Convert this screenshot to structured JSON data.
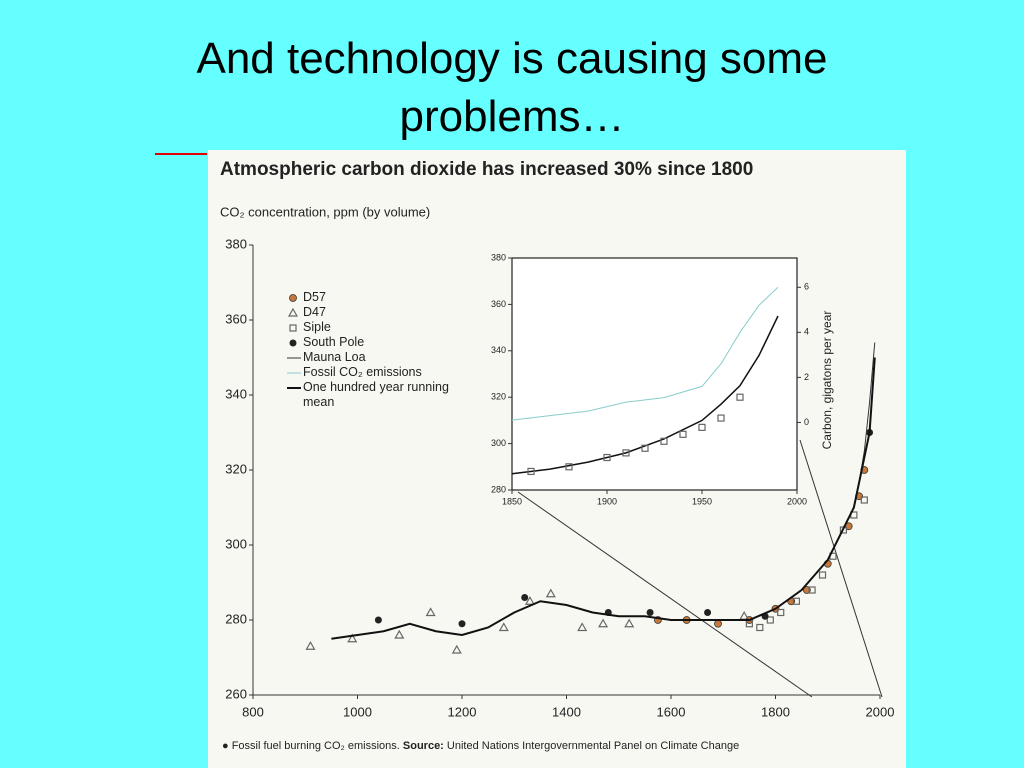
{
  "title": "And technology is causing some problems…",
  "chart_data": [
    {
      "type": "scatter",
      "title": "Atmospheric carbon dioxide has increased 30% since 1800",
      "subtitle": "CO₂ concentration, ppm (by volume)",
      "note": "Fossil fuel burning CO₂ emissions.",
      "source_label": "Source:",
      "source": "United Nations Intergovernmental Panel on Climate Change",
      "xlim": [
        800,
        2000
      ],
      "xticks": [
        800,
        1000,
        1200,
        1400,
        1600,
        1800,
        2000
      ],
      "ylim": [
        260,
        380
      ],
      "yticks": [
        260,
        280,
        300,
        320,
        340,
        360,
        380
      ],
      "grid": false,
      "series": [
        {
          "name": "D57",
          "type": "scatter",
          "marker": "circle",
          "color": "#c8783a",
          "x": [
            1575,
            1630,
            1690,
            1750,
            1800,
            1830,
            1860,
            1900,
            1940,
            1960,
            1970
          ],
          "values": [
            280,
            280,
            279,
            280,
            283,
            285,
            288,
            295,
            305,
            313,
            320
          ]
        },
        {
          "name": "D47",
          "type": "scatter",
          "marker": "triangle",
          "color": "#666666",
          "x": [
            910,
            990,
            1080,
            1140,
            1190,
            1280,
            1330,
            1370,
            1430,
            1470,
            1520,
            1740
          ],
          "values": [
            273,
            275,
            276,
            282,
            272,
            278,
            285,
            287,
            278,
            279,
            279,
            281
          ]
        },
        {
          "name": "Siple",
          "type": "scatter",
          "marker": "square",
          "color": "#666666",
          "x": [
            1750,
            1770,
            1790,
            1810,
            1840,
            1870,
            1890,
            1910,
            1930,
            1950,
            1970
          ],
          "values": [
            279,
            278,
            280,
            282,
            285,
            288,
            292,
            297,
            304,
            308,
            312
          ]
        },
        {
          "name": "South Pole",
          "type": "scatter",
          "marker": "dot",
          "color": "#222222",
          "x": [
            1040,
            1200,
            1320,
            1480,
            1560,
            1670,
            1780,
            1980
          ],
          "values": [
            280,
            279,
            286,
            282,
            282,
            282,
            281,
            330
          ]
        },
        {
          "name": "Mauna Loa",
          "type": "line",
          "width": 1,
          "color": "#333333",
          "x": [
            1958,
            1970,
            1980,
            1990
          ],
          "values": [
            315,
            325,
            338,
            354
          ]
        },
        {
          "name": "One hundred year running mean",
          "type": "line",
          "width": 2,
          "color": "#111111",
          "x": [
            950,
            1000,
            1050,
            1100,
            1150,
            1200,
            1250,
            1300,
            1350,
            1400,
            1450,
            1500,
            1550,
            1600,
            1650,
            1700,
            1750,
            1800,
            1850,
            1900,
            1950,
            1980,
            1990
          ],
          "values": [
            275,
            276,
            277,
            279,
            277,
            276,
            278,
            282,
            285,
            284,
            282,
            281,
            281,
            280,
            280,
            280,
            280,
            283,
            288,
            296,
            310,
            330,
            350
          ]
        }
      ]
    },
    {
      "type": "line",
      "y2label": "Carbon, gigatons per year",
      "xlim": [
        1850,
        2000
      ],
      "xticks": [
        1850,
        1900,
        1950,
        2000
      ],
      "ylim": [
        280,
        380
      ],
      "yticks": [
        280,
        300,
        320,
        340,
        360,
        380
      ],
      "y2lim": [
        -3,
        7.3
      ],
      "y2ticks": [
        0,
        2,
        4,
        6
      ],
      "series": [
        {
          "type": "line",
          "width": 1.5,
          "color": "#111111",
          "x": [
            1850,
            1870,
            1890,
            1910,
            1930,
            1950,
            1960,
            1970,
            1980,
            1990
          ],
          "values": [
            287,
            289,
            292,
            296,
            302,
            310,
            317,
            325,
            338,
            355
          ]
        },
        {
          "type": "scatter",
          "marker": "square",
          "color": "#666666",
          "x": [
            1860,
            1880,
            1900,
            1910,
            1920,
            1930,
            1940,
            1950,
            1960,
            1970
          ],
          "values": [
            288,
            290,
            294,
            296,
            298,
            301,
            304,
            307,
            311,
            320
          ]
        },
        {
          "name": "Fossil CO₂ emissions",
          "type": "line",
          "axis": "y2",
          "width": 1,
          "color": "#88cccc",
          "x": [
            1850,
            1870,
            1890,
            1910,
            1930,
            1950,
            1960,
            1970,
            1980,
            1990
          ],
          "values": [
            0.1,
            0.3,
            0.5,
            0.9,
            1.1,
            1.6,
            2.6,
            4,
            5.2,
            6
          ]
        }
      ]
    }
  ]
}
